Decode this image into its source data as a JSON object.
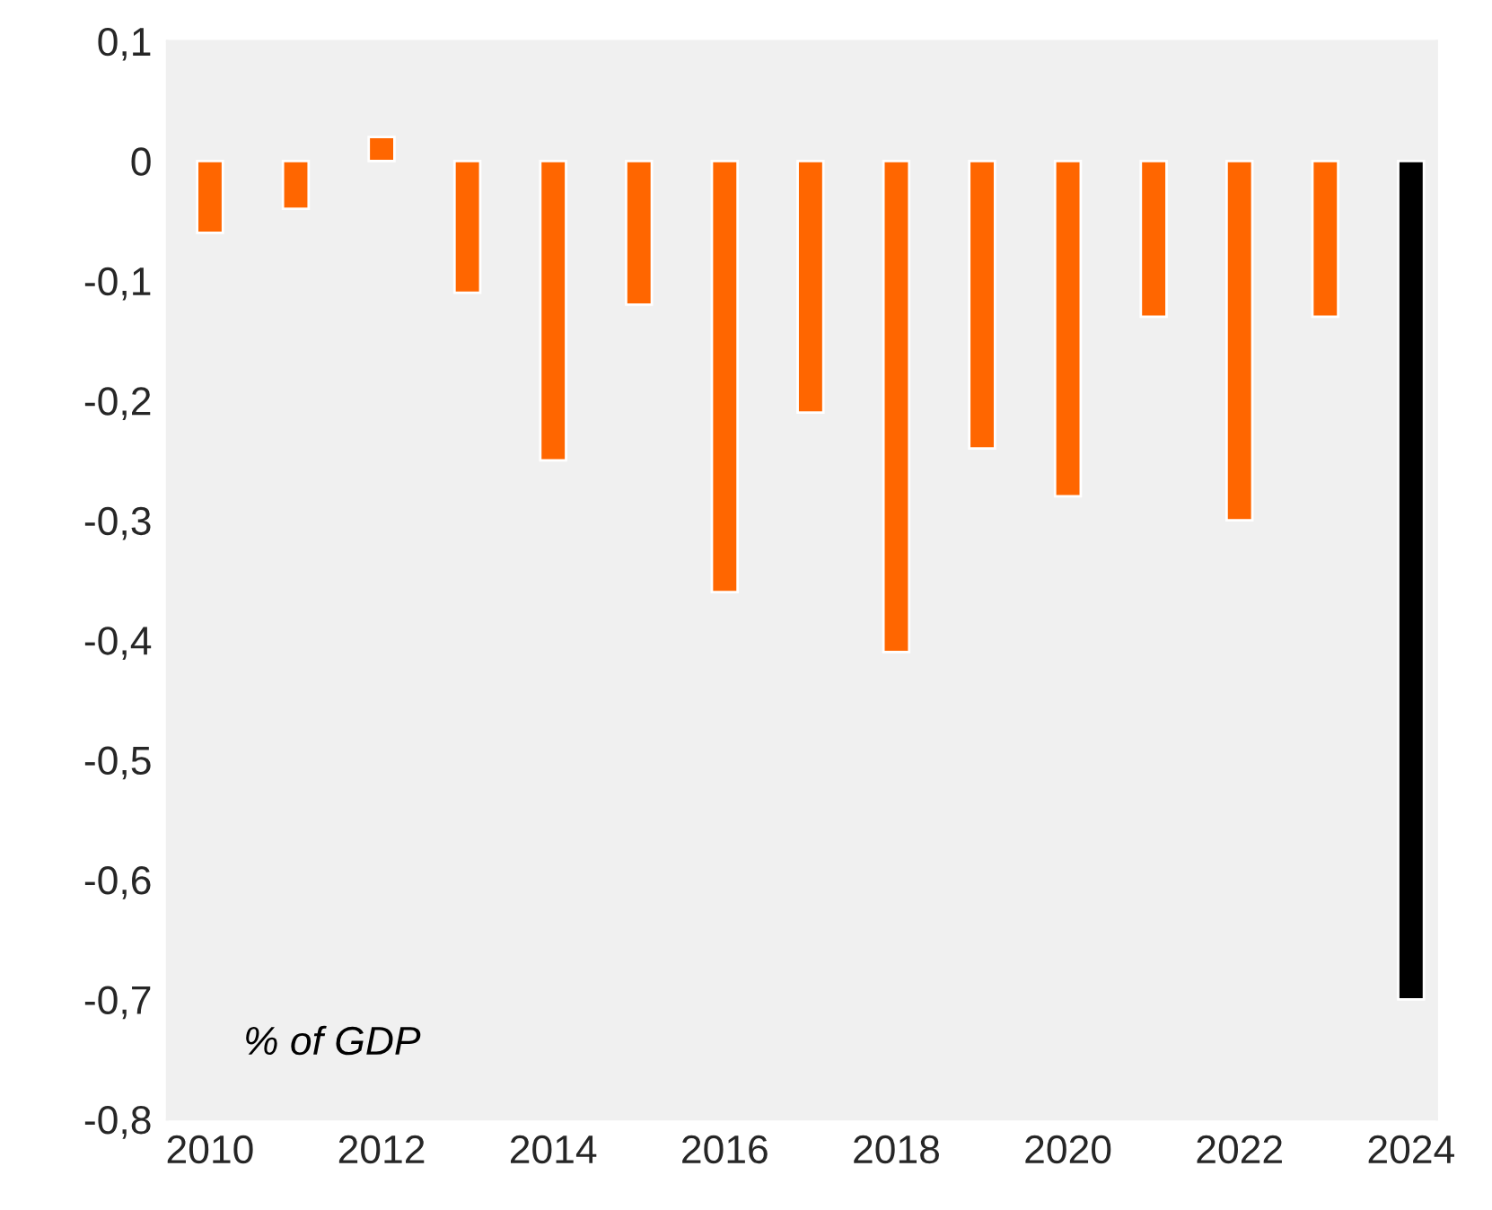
{
  "chart_data": {
    "type": "bar",
    "x": [
      2010,
      2011,
      2012,
      2013,
      2014,
      2015,
      2016,
      2017,
      2018,
      2019,
      2020,
      2021,
      2022,
      2023,
      2024
    ],
    "values": [
      -0.06,
      -0.04,
      0.02,
      -0.11,
      -0.25,
      -0.12,
      -0.36,
      -0.21,
      -0.41,
      -0.24,
      -0.28,
      -0.13,
      -0.3,
      -0.13,
      -0.7
    ],
    "colors": [
      "#ff6600",
      "#ff6600",
      "#ff6600",
      "#ff6600",
      "#ff6600",
      "#ff6600",
      "#ff6600",
      "#ff6600",
      "#ff6600",
      "#ff6600",
      "#ff6600",
      "#ff6600",
      "#ff6600",
      "#ff6600",
      "#000000"
    ],
    "xlim": [
      2009.5,
      2024.3
    ],
    "xticks": [
      2010,
      2012,
      2014,
      2016,
      2018,
      2020,
      2022,
      2024
    ],
    "ylim": [
      -0.8,
      0.1
    ],
    "yticks": [
      {
        "value": 0.1,
        "label": "0,1"
      },
      0,
      {
        "value": -0.1,
        "label": "-0,1"
      },
      {
        "value": -0.2,
        "label": "-0,2"
      },
      {
        "value": -0.3,
        "label": "-0,3"
      },
      {
        "value": -0.4,
        "label": "-0,4"
      },
      {
        "value": -0.5,
        "label": "-0,5"
      },
      {
        "value": -0.6,
        "label": "-0,6"
      },
      {
        "value": -0.7,
        "label": "-0,7"
      },
      {
        "value": -0.8,
        "label": "-0,8"
      }
    ],
    "annotations": [
      "% of GDP"
    ],
    "grid": false,
    "legend": false
  }
}
